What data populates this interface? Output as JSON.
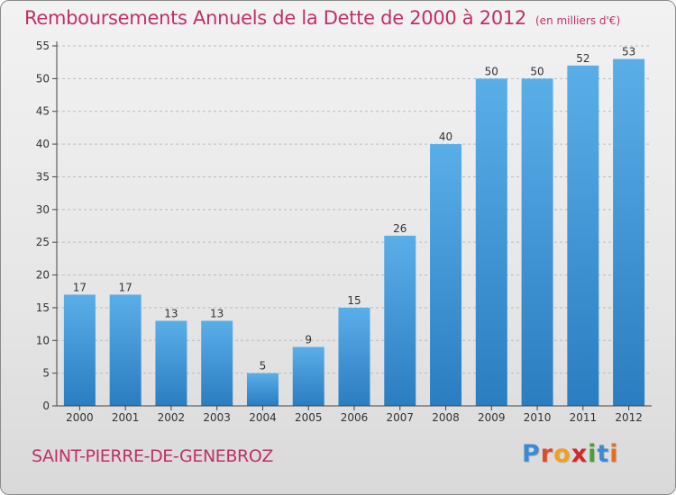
{
  "header": {
    "title": "Remboursements Annuels de la Dette de 2000 à 2012",
    "unit": "(en milliers d'€)"
  },
  "footer": {
    "commune": "SAINT-PIERRE-DE-GENEBROZ",
    "logo": [
      "P",
      "r",
      "o",
      "x",
      "i",
      "t",
      "i"
    ],
    "logo_colors": [
      "#3a8bd3",
      "#e04a2c",
      "#f0a020",
      "#d02a2a",
      "#4aa03a",
      "#3a8bd3",
      "#e07020"
    ]
  },
  "colors": {
    "bar_top": "#5aaee8",
    "bar_bottom": "#2a7dc0",
    "axis": "#444444",
    "grid": "#bbbbbb",
    "title": "#c0306a"
  },
  "chart_data": {
    "type": "bar",
    "categories": [
      "2000",
      "2001",
      "2002",
      "2003",
      "2004",
      "2005",
      "2006",
      "2007",
      "2008",
      "2009",
      "2010",
      "2011",
      "2012"
    ],
    "values": [
      17,
      17,
      13,
      13,
      5,
      9,
      15,
      26,
      40,
      50,
      50,
      52,
      53
    ],
    "ylim": [
      0,
      55
    ],
    "yticks": [
      0,
      5,
      10,
      15,
      20,
      25,
      30,
      35,
      40,
      45,
      50,
      55
    ],
    "grid": true,
    "data_labels": true
  }
}
